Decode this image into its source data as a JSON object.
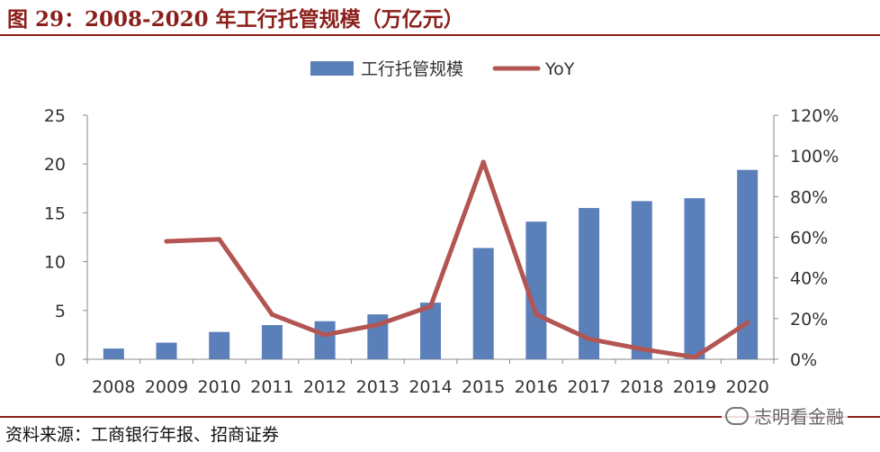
{
  "header": {
    "title": "图 29：2008-2020 年工行托管规模（万亿元）"
  },
  "footer": {
    "source": "资料来源：工商银行年报、招商证券",
    "watermark": "志明看金融"
  },
  "colors": {
    "bar": "#5b80b9",
    "line": "#b35552",
    "accent": "#8b1f1a"
  },
  "chart_data": {
    "type": "bar",
    "categories": [
      "2008",
      "2009",
      "2010",
      "2011",
      "2012",
      "2013",
      "2014",
      "2015",
      "2016",
      "2017",
      "2018",
      "2019",
      "2020"
    ],
    "series": [
      {
        "name": "工行托管规模",
        "type": "bar",
        "axis": "left",
        "values": [
          1.1,
          1.7,
          2.8,
          3.5,
          3.9,
          4.6,
          5.8,
          11.4,
          14.1,
          15.5,
          16.2,
          16.5,
          19.4
        ]
      },
      {
        "name": "YoY",
        "type": "line",
        "axis": "right",
        "values": [
          null,
          58,
          59,
          22,
          12,
          17,
          26,
          97,
          22,
          10,
          5,
          1,
          18
        ]
      }
    ],
    "left_axis": {
      "ylim": [
        0,
        25
      ],
      "ticks": [
        "0",
        "5",
        "10",
        "15",
        "20",
        "25"
      ]
    },
    "right_axis": {
      "ylim": [
        0,
        120
      ],
      "ticks": [
        "0%",
        "20%",
        "40%",
        "60%",
        "80%",
        "100%",
        "120%"
      ]
    },
    "legend_position": "top-center",
    "grid": false
  }
}
